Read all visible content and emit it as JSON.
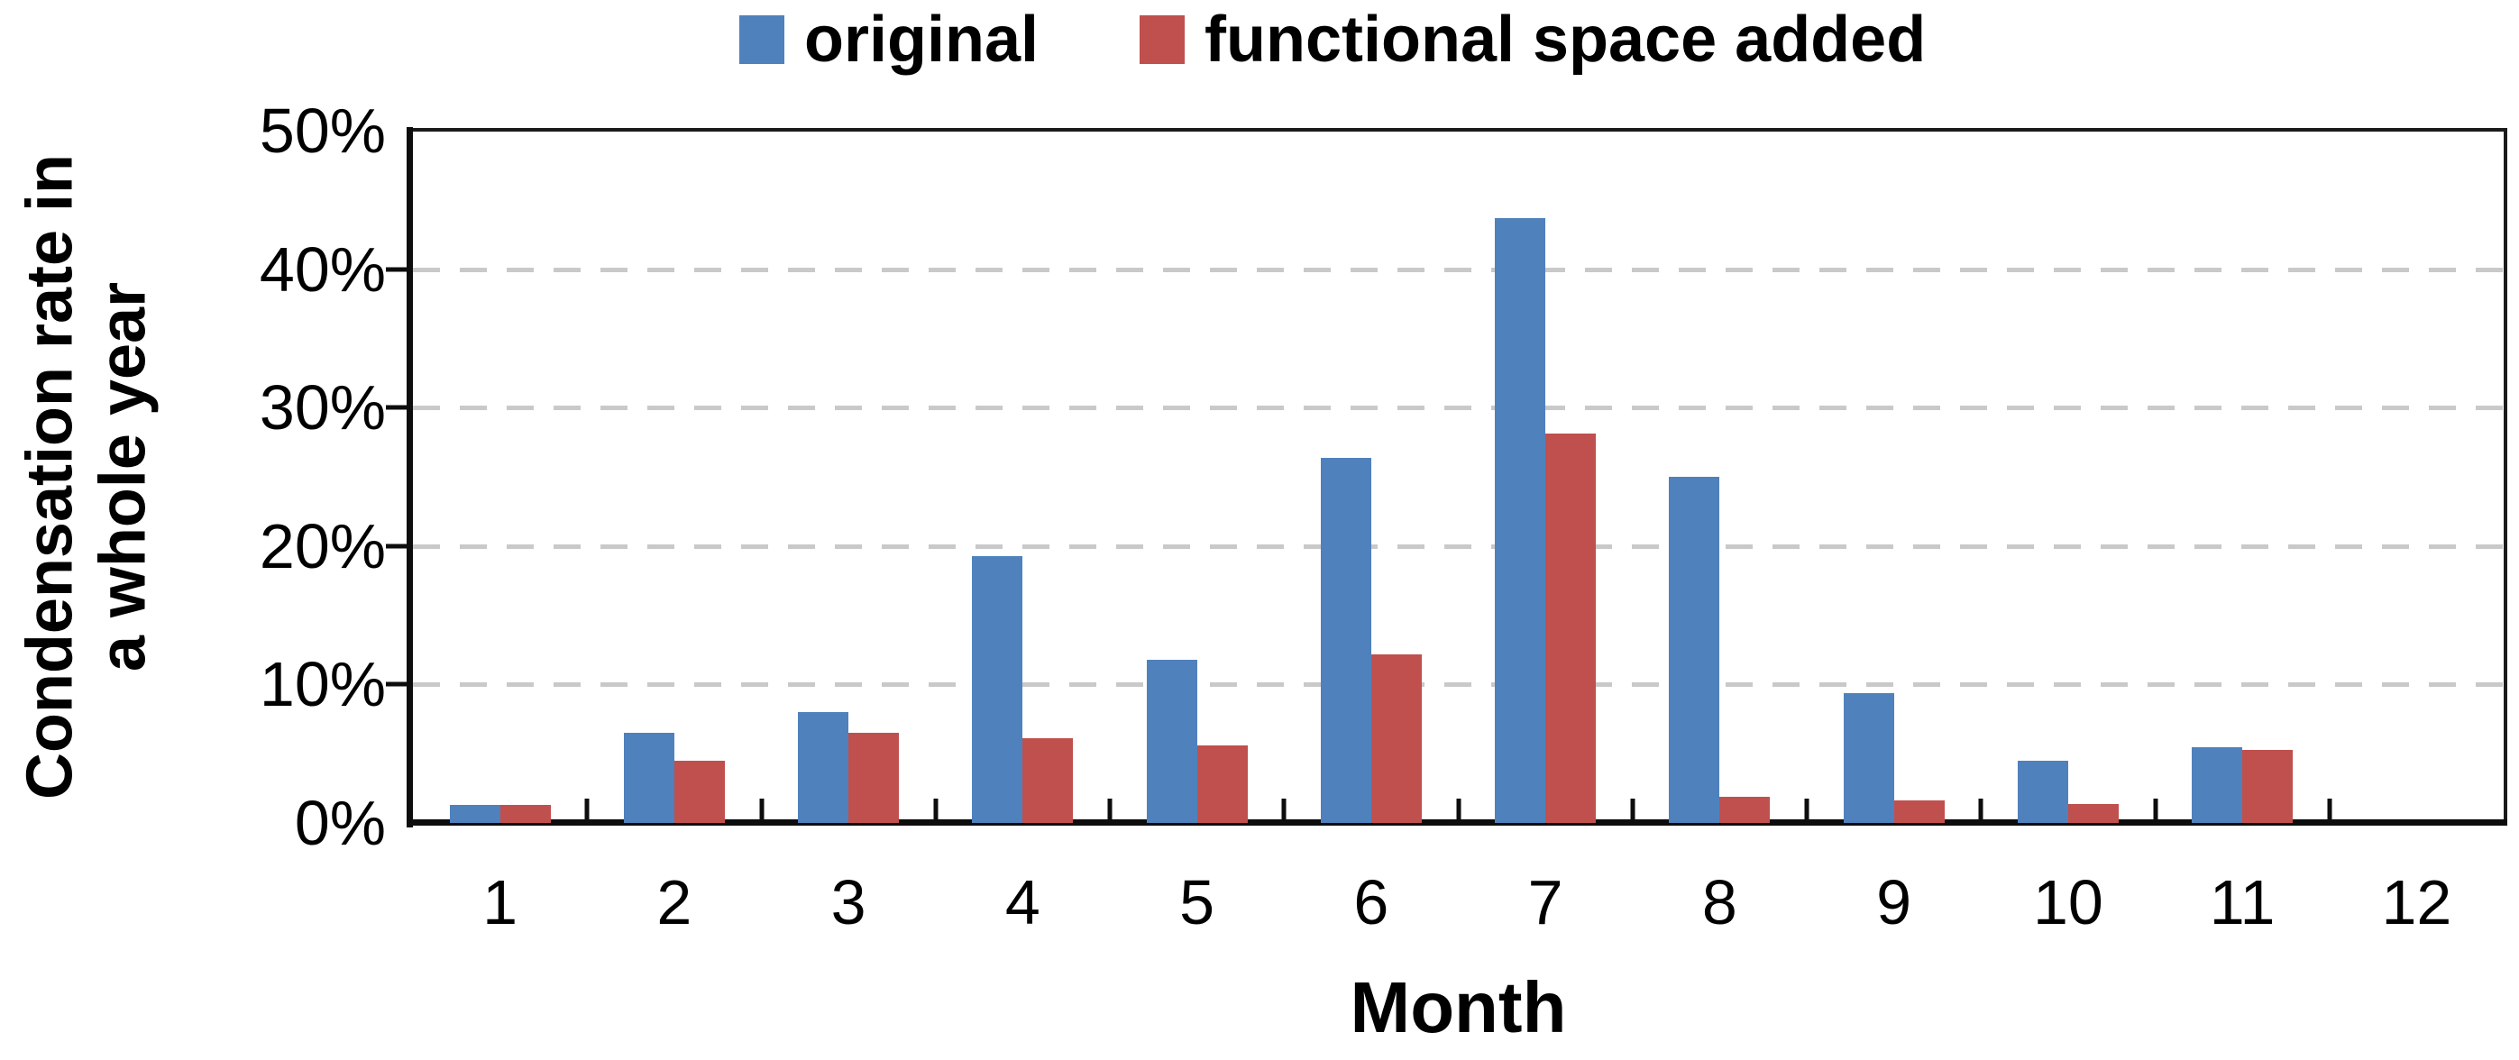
{
  "legend": {
    "position": "top",
    "items": [
      {
        "label": "original",
        "color": "#4F81BD"
      },
      {
        "label": "functional space added",
        "color": "#C0504D"
      }
    ]
  },
  "y_axis": {
    "title_line1": "Condensation rate in",
    "title_line2": "a whole year",
    "tick_labels": [
      "50%",
      "40%",
      "30%",
      "20%",
      "10%",
      "0%"
    ]
  },
  "x_axis": {
    "title": "Month",
    "categories": [
      "1",
      "2",
      "3",
      "4",
      "5",
      "6",
      "7",
      "8",
      "9",
      "10",
      "11",
      "12"
    ]
  },
  "chart_data": {
    "type": "bar",
    "title": "",
    "xlabel": "Month",
    "ylabel": "Condensation rate in a whole year",
    "categories": [
      1,
      2,
      3,
      4,
      5,
      6,
      7,
      8,
      9,
      10,
      11,
      12
    ],
    "series": [
      {
        "name": "original",
        "color": "#4F81BD",
        "values": [
          1.3,
          6.5,
          8.0,
          19.3,
          11.8,
          26.4,
          43.7,
          25.0,
          9.4,
          4.5,
          5.5,
          0
        ]
      },
      {
        "name": "functional space added",
        "color": "#C0504D",
        "values": [
          1.3,
          4.5,
          6.5,
          6.1,
          5.6,
          12.2,
          28.1,
          1.9,
          1.6,
          1.4,
          5.3,
          0
        ]
      }
    ],
    "ylim": [
      0,
      50
    ],
    "y_ticks_percent": [
      0,
      10,
      20,
      30,
      40,
      50
    ],
    "grid": "horizontal-dashed",
    "gridline_color": "#c9c9c9",
    "legend_position": "top"
  }
}
